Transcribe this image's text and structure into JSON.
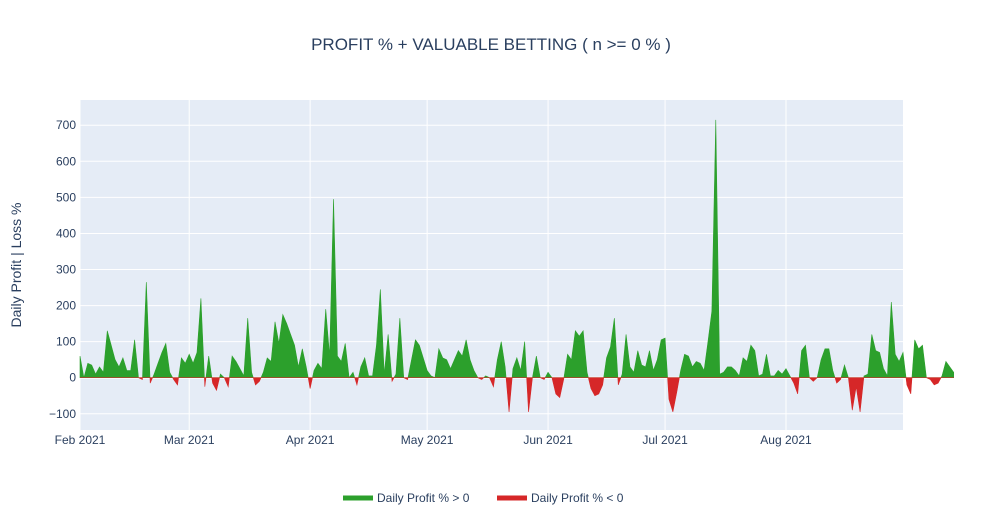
{
  "chart_data": {
    "type": "area",
    "title": "PROFIT % + VALUABLE BETTING ( n >= 0 % )",
    "xlabel": "",
    "ylabel": "Daily Profit | Loss %",
    "x_start": "2021-02-01",
    "x_end": "2021-08-31",
    "ylim": [
      -145,
      770
    ],
    "y_ticks": [
      -100,
      0,
      100,
      200,
      300,
      400,
      500,
      600,
      700
    ],
    "x_ticks": [
      {
        "date": "2021-02-01",
        "label": "Feb 2021"
      },
      {
        "date": "2021-03-01",
        "label": "Mar 2021"
      },
      {
        "date": "2021-04-01",
        "label": "Apr 2021"
      },
      {
        "date": "2021-05-01",
        "label": "May 2021"
      },
      {
        "date": "2021-06-01",
        "label": "Jun 2021"
      },
      {
        "date": "2021-07-01",
        "label": "Jul 2021"
      },
      {
        "date": "2021-08-01",
        "label": "Aug 2021"
      }
    ],
    "grid": true,
    "legend_position": "bottom",
    "series": [
      {
        "name": "Daily Profit % > 0",
        "color": "#2ca02c",
        "condition": "positive"
      },
      {
        "name": "Daily Profit % < 0",
        "color": "#d62728",
        "condition": "negative"
      }
    ],
    "daily_values": [
      60,
      0,
      40,
      35,
      10,
      30,
      15,
      130,
      90,
      50,
      30,
      55,
      20,
      20,
      105,
      0,
      -5,
      265,
      -15,
      10,
      40,
      70,
      95,
      15,
      -5,
      -20,
      55,
      40,
      65,
      40,
      70,
      220,
      -25,
      60,
      -15,
      -35,
      10,
      0,
      -25,
      60,
      45,
      25,
      5,
      165,
      15,
      -20,
      -10,
      15,
      55,
      45,
      155,
      95,
      175,
      150,
      120,
      90,
      30,
      80,
      30,
      -30,
      20,
      40,
      25,
      190,
      60,
      495,
      60,
      45,
      95,
      0,
      15,
      -20,
      30,
      55,
      5,
      5,
      90,
      245,
      10,
      120,
      -10,
      10,
      165,
      0,
      -5,
      50,
      105,
      90,
      55,
      20,
      5,
      0,
      80,
      55,
      50,
      25,
      50,
      75,
      60,
      105,
      50,
      20,
      0,
      -5,
      5,
      0,
      -25,
      50,
      100,
      30,
      -95,
      25,
      55,
      20,
      100,
      -95,
      0,
      60,
      0,
      -5,
      15,
      0,
      -45,
      -55,
      -5,
      65,
      50,
      130,
      115,
      130,
      15,
      -30,
      -50,
      -45,
      -20,
      55,
      85,
      165,
      -20,
      10,
      120,
      30,
      15,
      75,
      35,
      30,
      75,
      20,
      50,
      105,
      110,
      -60,
      -95,
      -40,
      20,
      65,
      60,
      30,
      45,
      40,
      20,
      100,
      185,
      715,
      10,
      15,
      30,
      30,
      20,
      5,
      55,
      45,
      90,
      75,
      5,
      10,
      65,
      5,
      5,
      20,
      10,
      25,
      5,
      -15,
      -45,
      75,
      90,
      0,
      -10,
      0,
      50,
      80,
      80,
      20,
      -15,
      -5,
      35,
      0,
      -90,
      -25,
      -95,
      5,
      10,
      120,
      75,
      70,
      25,
      5,
      210,
      65,
      45,
      70,
      -20,
      -45,
      105,
      80,
      90,
      0,
      -5,
      -20,
      -15,
      5,
      45,
      30,
      15
    ]
  }
}
